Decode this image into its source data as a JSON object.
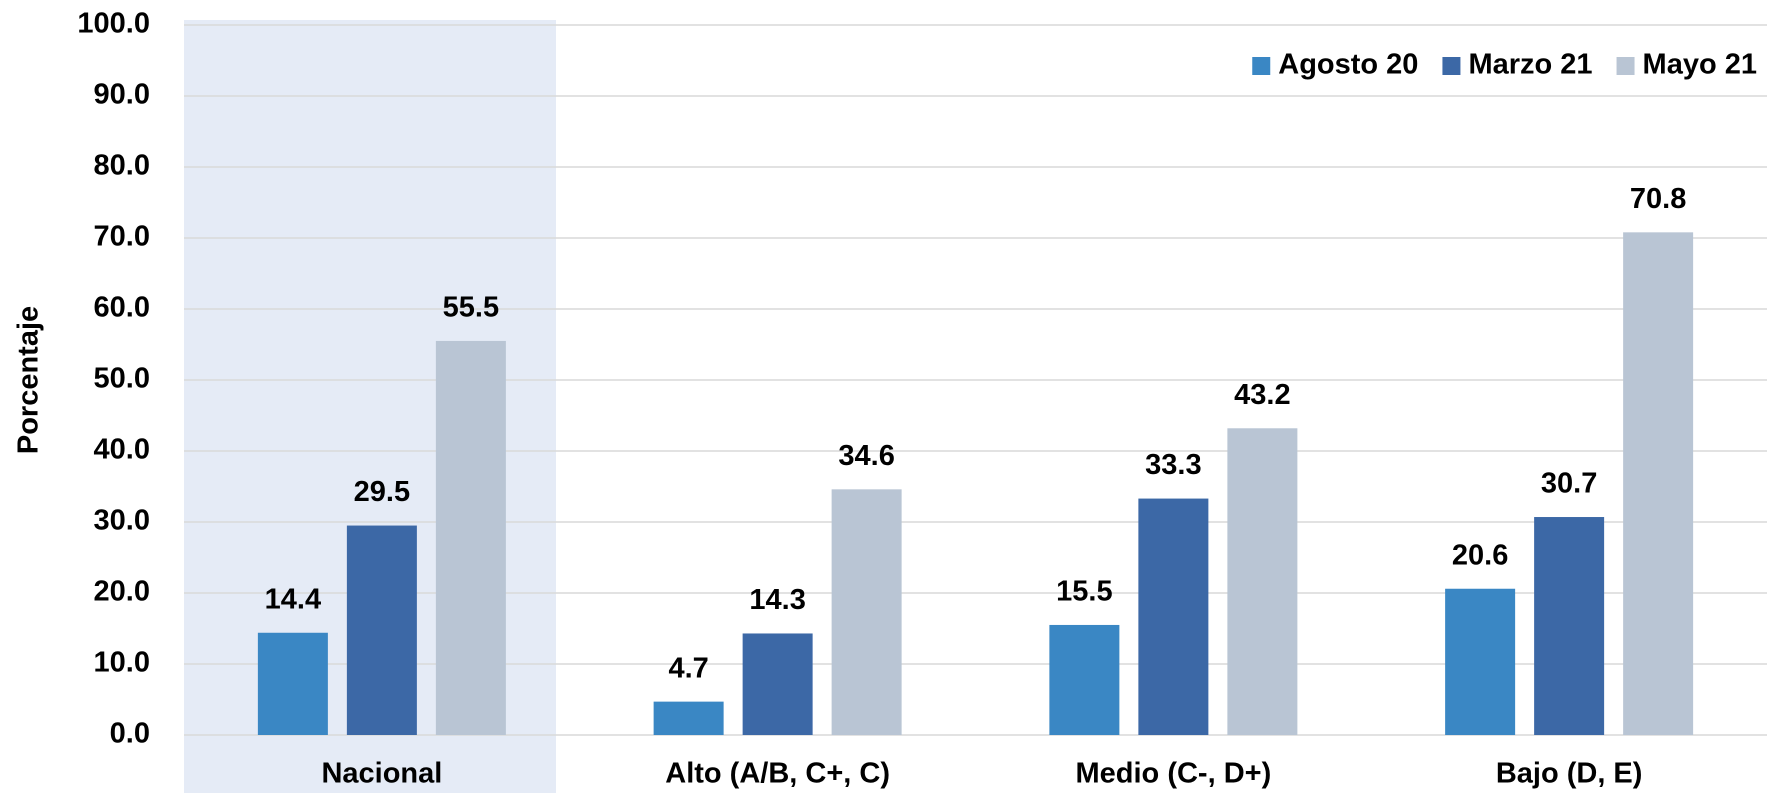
{
  "chart_data": {
    "type": "bar",
    "y_label": "Porcentaje",
    "categories": [
      "Nacional",
      "Alto (A/B, C+, C)",
      "Medio (C-, D+)",
      "Bajo (D, E)"
    ],
    "series": [
      {
        "name": "Agosto 20",
        "color": "#3a87c4",
        "values": [
          14.4,
          4.7,
          15.5,
          20.6
        ]
      },
      {
        "name": "Marzo 21",
        "color": "#3c68a6",
        "values": [
          29.5,
          14.3,
          33.3,
          30.7
        ]
      },
      {
        "name": "Mayo 21",
        "color": "#b9c5d4",
        "values": [
          55.5,
          34.6,
          43.2,
          70.8
        ]
      }
    ],
    "ylim": [
      0,
      100
    ],
    "yticks": [
      {
        "value": 0,
        "label": "0.0"
      },
      {
        "value": 10,
        "label": "10.0"
      },
      {
        "value": 20,
        "label": "20.0"
      },
      {
        "value": 30,
        "label": "30.0"
      },
      {
        "value": 40,
        "label": "40.0"
      },
      {
        "value": 50,
        "label": "50.0"
      },
      {
        "value": 60,
        "label": "60.0"
      },
      {
        "value": 70,
        "label": "70.0"
      },
      {
        "value": 80,
        "label": "80.0"
      },
      {
        "value": 90,
        "label": "90.0"
      },
      {
        "value": 100,
        "label": "100.0"
      }
    ],
    "grid": true,
    "legend": "top-right",
    "highlight_color": "#e5ebf6"
  }
}
